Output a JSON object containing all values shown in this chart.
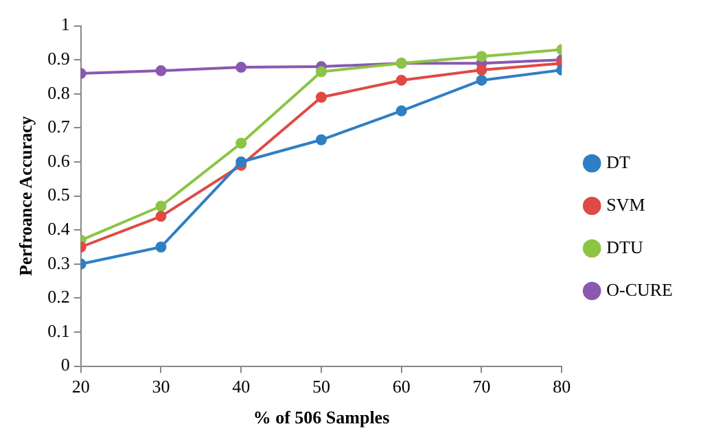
{
  "chart_data": {
    "type": "line",
    "xlabel": "% of 506 Samples",
    "ylabel": "Perfroance Accuracy",
    "x": [
      20,
      30,
      40,
      50,
      60,
      70,
      80
    ],
    "series": [
      {
        "name": "DT",
        "color": "#2e7fc4",
        "values": [
          0.3,
          0.35,
          0.6,
          0.665,
          0.75,
          0.84,
          0.87
        ]
      },
      {
        "name": "SVM",
        "color": "#e04a44",
        "values": [
          0.35,
          0.44,
          0.59,
          0.79,
          0.84,
          0.87,
          0.89
        ]
      },
      {
        "name": "DTU",
        "color": "#8cc443",
        "values": [
          0.37,
          0.47,
          0.655,
          0.865,
          0.89,
          0.91,
          0.93
        ]
      },
      {
        "name": "O-CURE",
        "color": "#8a58b0",
        "values": [
          0.86,
          0.868,
          0.878,
          0.88,
          0.89,
          0.89,
          0.9
        ]
      }
    ],
    "xlim": [
      20,
      80
    ],
    "xticks": [
      20,
      30,
      40,
      50,
      60,
      70,
      80
    ],
    "ylim": [
      0,
      1
    ],
    "yticks": [
      0,
      0.1,
      0.2,
      0.3,
      0.4,
      0.5,
      0.6,
      0.7,
      0.8,
      0.9,
      1
    ],
    "grid": false,
    "legend": "right",
    "marker": "circle",
    "line_style": "solid"
  }
}
